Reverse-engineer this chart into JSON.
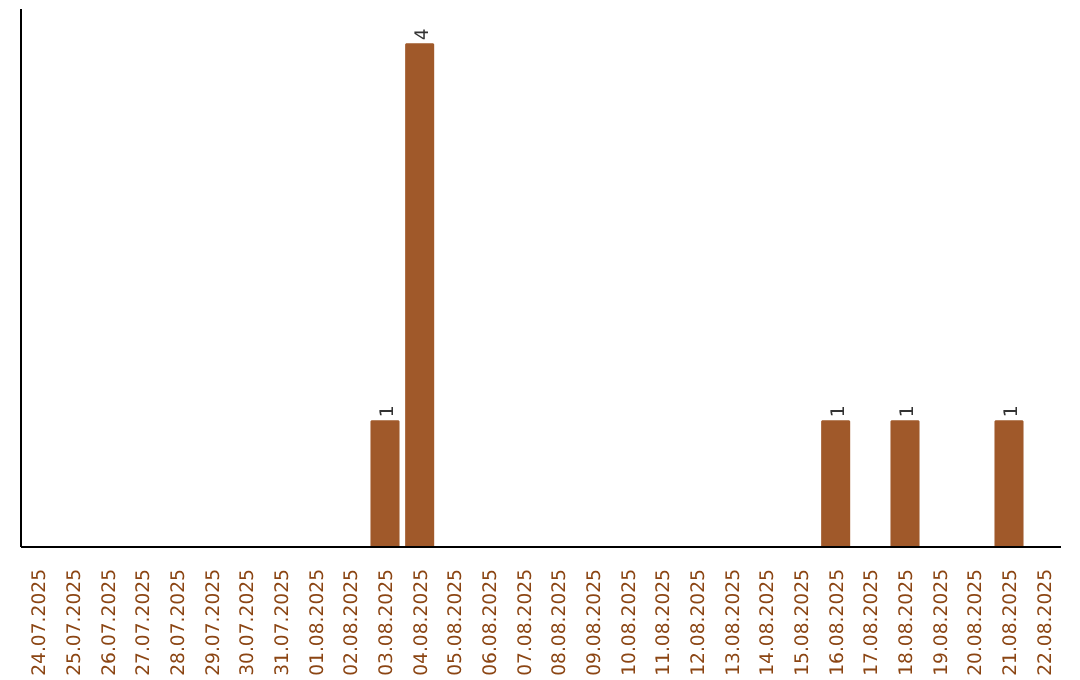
{
  "chart_data": {
    "type": "bar",
    "categories": [
      "24.07.2025",
      "25.07.2025",
      "26.07.2025",
      "27.07.2025",
      "28.07.2025",
      "29.07.2025",
      "30.07.2025",
      "31.07.2025",
      "01.08.2025",
      "02.08.2025",
      "03.08.2025",
      "04.08.2025",
      "05.08.2025",
      "06.08.2025",
      "07.08.2025",
      "08.08.2025",
      "09.08.2025",
      "10.08.2025",
      "11.08.2025",
      "12.08.2025",
      "13.08.2025",
      "14.08.2025",
      "15.08.2025",
      "16.08.2025",
      "17.08.2025",
      "18.08.2025",
      "19.08.2025",
      "20.08.2025",
      "21.08.2025",
      "22.08.2025"
    ],
    "values": [
      0,
      0,
      0,
      0,
      0,
      0,
      0,
      0,
      0,
      0,
      1,
      4,
      0,
      0,
      0,
      0,
      0,
      0,
      0,
      0,
      0,
      0,
      0,
      1,
      0,
      1,
      0,
      0,
      1,
      0
    ],
    "value_labels": [
      null,
      null,
      null,
      null,
      null,
      null,
      null,
      null,
      null,
      null,
      "1",
      "4",
      null,
      null,
      null,
      null,
      null,
      null,
      null,
      null,
      null,
      null,
      null,
      "1",
      null,
      "1",
      null,
      null,
      "1",
      null
    ],
    "color": "#a0592a",
    "grid": false
  }
}
